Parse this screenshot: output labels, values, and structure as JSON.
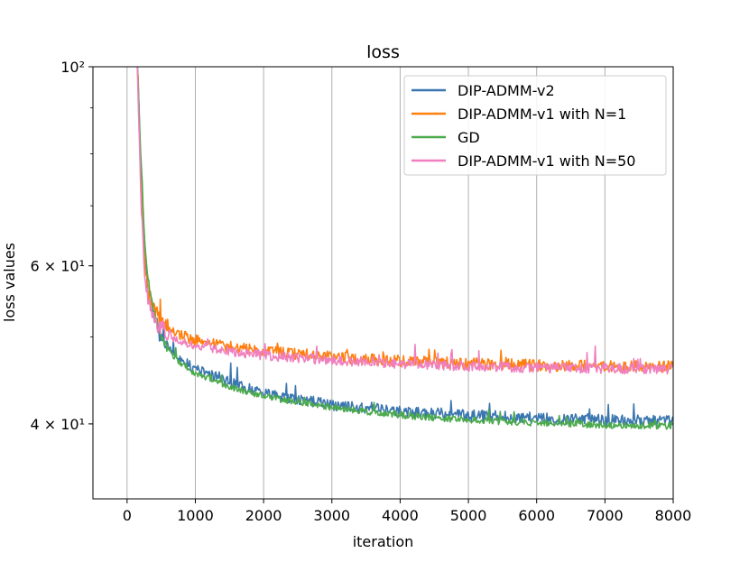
{
  "chart_data": {
    "type": "line",
    "title": "loss",
    "xlabel": "iteration",
    "ylabel": "loss values",
    "yscale": "log",
    "xlim": [
      -500,
      8000
    ],
    "ylim": [
      33,
      100
    ],
    "xticks": [
      0,
      1000,
      2000,
      3000,
      4000,
      5000,
      6000,
      7000,
      8000
    ],
    "xtick_labels": [
      "0",
      "1000",
      "2000",
      "3000",
      "4000",
      "5000",
      "6000",
      "7000",
      "8000"
    ],
    "yticks": [
      {
        "value": 100,
        "label": "10²"
      },
      {
        "value": 60,
        "label": "6 × 10¹"
      },
      {
        "value": 40,
        "label": "4 × 10¹"
      }
    ],
    "grid": "x",
    "legend_position": "top-right",
    "series": [
      {
        "name": "DIP-ADMM-v2",
        "color": "#3a76b0",
        "x": [
          150,
          200,
          250,
          300,
          400,
          500,
          700,
          1000,
          1500,
          2000,
          3000,
          4000,
          5000,
          6000,
          7000,
          8000
        ],
        "y": [
          100,
          78,
          64,
          57,
          52.5,
          50,
          47.8,
          46,
          44.5,
          43.3,
          42,
          41.3,
          40.9,
          40.6,
          40.4,
          40.3
        ]
      },
      {
        "name": "DIP-ADMM-v1 with N=1",
        "color": "#ff7f0e",
        "x": [
          150,
          200,
          250,
          300,
          400,
          500,
          700,
          1000,
          1500,
          2000,
          3000,
          4000,
          5000,
          6000,
          7000,
          8000
        ],
        "y": [
          100,
          75,
          62,
          56.5,
          53.5,
          52,
          50.5,
          49.6,
          48.8,
          48.2,
          47.5,
          47,
          46.7,
          46.5,
          46.4,
          46.3
        ]
      },
      {
        "name": "GD",
        "color": "#4caa4c",
        "x": [
          150,
          200,
          250,
          300,
          400,
          500,
          700,
          1000,
          1500,
          2000,
          3000,
          4000,
          5000,
          6000,
          7000,
          8000
        ],
        "y": [
          100,
          80,
          66,
          58,
          53,
          50,
          47.3,
          45.5,
          44,
          42.9,
          41.7,
          40.9,
          40.4,
          40.1,
          39.9,
          39.8
        ]
      },
      {
        "name": "DIP-ADMM-v1 with N=50",
        "color": "#f07fbf",
        "x": [
          150,
          200,
          250,
          300,
          400,
          500,
          700,
          1000,
          1500,
          2000,
          3000,
          4000,
          5000,
          6000,
          7000,
          8000
        ],
        "y": [
          100,
          72,
          60,
          55,
          52.5,
          51,
          49.8,
          48.9,
          48.2,
          47.7,
          47.1,
          46.7,
          46.4,
          46.2,
          46.1,
          46
        ]
      }
    ]
  }
}
